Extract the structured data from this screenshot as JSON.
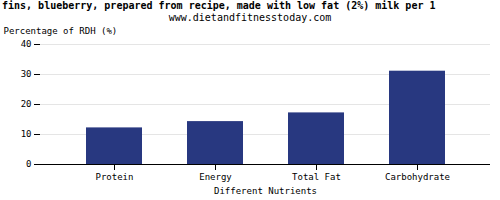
{
  "chart_data": {
    "type": "bar",
    "title": "fins, blueberry, prepared from recipe, made with low fat (2%) milk per 1",
    "subtitle": "www.dietandfitnesstoday.com",
    "categories": [
      "Protein",
      "Energy",
      "Total Fat",
      "Carbohydrate"
    ],
    "values": [
      12.2,
      14.3,
      17.2,
      31.1
    ],
    "color": "#283880",
    "xlabel": "Different Nutrients",
    "ylabel": "Percentage of RDH (%)",
    "ylim": [
      0,
      40
    ],
    "yticks": [
      0,
      10,
      20,
      30,
      40
    ],
    "grid": true
  }
}
